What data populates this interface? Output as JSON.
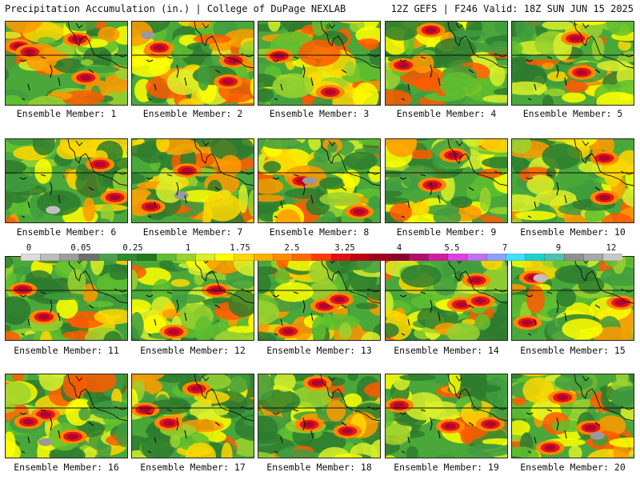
{
  "header": {
    "left_title": "Precipitation Accumulation (in.) | College of DuPage NEXLAB",
    "right_title": "12Z GEFS | F246 Valid: 18Z SUN JUN 15 2025"
  },
  "panels": [
    {
      "label": "Ensemble Member: 1"
    },
    {
      "label": "Ensemble Member: 2"
    },
    {
      "label": "Ensemble Member: 3"
    },
    {
      "label": "Ensemble Member: 4"
    },
    {
      "label": "Ensemble Member: 5"
    },
    {
      "label": "Ensemble Member: 6"
    },
    {
      "label": "Ensemble Member: 7"
    },
    {
      "label": "Ensemble Member: 8"
    },
    {
      "label": "Ensemble Member: 9"
    },
    {
      "label": "Ensemble Member: 10"
    },
    {
      "label": "Ensemble Member: 11"
    },
    {
      "label": "Ensemble Member: 12"
    },
    {
      "label": "Ensemble Member: 13"
    },
    {
      "label": "Ensemble Member: 14"
    },
    {
      "label": "Ensemble Member: 15"
    },
    {
      "label": "Ensemble Member: 16"
    },
    {
      "label": "Ensemble Member: 17"
    },
    {
      "label": "Ensemble Member: 18"
    },
    {
      "label": "Ensemble Member: 19"
    },
    {
      "label": "Ensemble Member: 20"
    }
  ],
  "colorbar": {
    "tick_labels": [
      "0",
      "0.05",
      "0.25",
      "1",
      "1.75",
      "2.5",
      "3.25",
      "4",
      "5.5",
      "7",
      "9",
      "12"
    ],
    "colors": [
      "#dcdcdc",
      "#bdbdbd",
      "#9e9e9e",
      "#6f6f6f",
      "#4f9f4f",
      "#2e8b2e",
      "#1f7a1f",
      "#5fbf2f",
      "#9ad22f",
      "#d9f02a",
      "#ffff00",
      "#ffd700",
      "#ffb000",
      "#ff8c00",
      "#ff6a00",
      "#ff3c00",
      "#e01010",
      "#c00010",
      "#a00020",
      "#8a0030",
      "#b0106a",
      "#d020a0",
      "#e040e0",
      "#c070f0",
      "#8fa0ff",
      "#40e0ff",
      "#20d0d0",
      "#50c0b0",
      "#909090",
      "#a8a8a8",
      "#c8c8c8"
    ]
  }
}
